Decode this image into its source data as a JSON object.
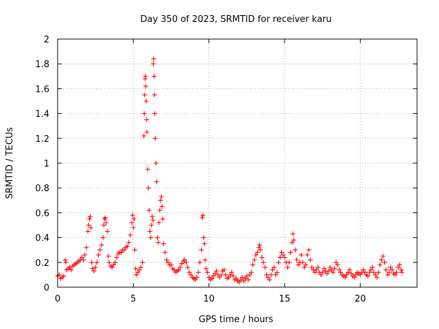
{
  "chart_data": {
    "type": "scatter",
    "title": "Day 350 of 2023, SRMTID for receiver karu",
    "xlabel": "GPS time / hours",
    "ylabel": "SRMTID / TECUs",
    "xlim": [
      0,
      23.75
    ],
    "ylim": [
      0,
      2
    ],
    "x_ticks": [
      0,
      5,
      10,
      15,
      20
    ],
    "x_tick_labels": [
      "0",
      "5",
      "10",
      "15",
      "20"
    ],
    "y_ticks": [
      0,
      0.2,
      0.4,
      0.6,
      0.8,
      1,
      1.2,
      1.4,
      1.6,
      1.8,
      2
    ],
    "y_tick_labels": [
      "0",
      "0.2",
      "0.4",
      "0.6",
      "0.8",
      "1",
      "1.2",
      "1.4",
      "1.6",
      "1.8",
      "2"
    ],
    "grid": true,
    "marker": "+",
    "color": "#ff0000",
    "series": [
      {
        "name": "SRMTID",
        "points": [
          [
            0.0,
            0.09
          ],
          [
            0.1,
            0.1
          ],
          [
            0.2,
            0.07
          ],
          [
            0.3,
            0.08
          ],
          [
            0.4,
            0.09
          ],
          [
            0.5,
            0.22
          ],
          [
            0.55,
            0.2
          ],
          [
            0.6,
            0.14
          ],
          [
            0.7,
            0.15
          ],
          [
            0.8,
            0.16
          ],
          [
            0.9,
            0.14
          ],
          [
            1.0,
            0.17
          ],
          [
            1.1,
            0.18
          ],
          [
            1.2,
            0.19
          ],
          [
            1.3,
            0.2
          ],
          [
            1.4,
            0.21
          ],
          [
            1.5,
            0.22
          ],
          [
            1.6,
            0.24
          ],
          [
            1.7,
            0.22
          ],
          [
            1.8,
            0.26
          ],
          [
            1.9,
            0.32
          ],
          [
            2.0,
            0.45
          ],
          [
            2.05,
            0.5
          ],
          [
            2.1,
            0.55
          ],
          [
            2.15,
            0.57
          ],
          [
            2.2,
            0.48
          ],
          [
            2.25,
            0.2
          ],
          [
            2.3,
            0.15
          ],
          [
            2.4,
            0.13
          ],
          [
            2.5,
            0.16
          ],
          [
            2.6,
            0.2
          ],
          [
            2.7,
            0.26
          ],
          [
            2.8,
            0.3
          ],
          [
            2.9,
            0.34
          ],
          [
            3.0,
            0.4
          ],
          [
            3.05,
            0.5
          ],
          [
            3.1,
            0.55
          ],
          [
            3.15,
            0.56
          ],
          [
            3.2,
            0.52
          ],
          [
            3.3,
            0.45
          ],
          [
            3.35,
            0.25
          ],
          [
            3.4,
            0.2
          ],
          [
            3.5,
            0.17
          ],
          [
            3.6,
            0.16
          ],
          [
            3.7,
            0.18
          ],
          [
            3.8,
            0.2
          ],
          [
            3.9,
            0.24
          ],
          [
            4.0,
            0.27
          ],
          [
            4.1,
            0.28
          ],
          [
            4.2,
            0.28
          ],
          [
            4.3,
            0.3
          ],
          [
            4.4,
            0.3
          ],
          [
            4.5,
            0.32
          ],
          [
            4.6,
            0.33
          ],
          [
            4.7,
            0.36
          ],
          [
            4.8,
            0.42
          ],
          [
            4.9,
            0.52
          ],
          [
            4.95,
            0.58
          ],
          [
            5.0,
            0.48
          ],
          [
            5.05,
            0.55
          ],
          [
            5.1,
            0.3
          ],
          [
            5.15,
            0.15
          ],
          [
            5.2,
            0.1
          ],
          [
            5.3,
            0.12
          ],
          [
            5.4,
            0.14
          ],
          [
            5.5,
            0.16
          ],
          [
            5.6,
            0.2
          ],
          [
            5.7,
            1.22
          ],
          [
            5.72,
            1.4
          ],
          [
            5.75,
            1.55
          ],
          [
            5.78,
            1.68
          ],
          [
            5.8,
            1.7
          ],
          [
            5.82,
            1.62
          ],
          [
            5.85,
            1.5
          ],
          [
            5.88,
            1.35
          ],
          [
            5.9,
            1.25
          ],
          [
            5.95,
            0.95
          ],
          [
            6.0,
            0.8
          ],
          [
            6.05,
            0.62
          ],
          [
            6.1,
            0.45
          ],
          [
            6.15,
            0.4
          ],
          [
            6.2,
            0.5
          ],
          [
            6.25,
            0.57
          ],
          [
            6.3,
            0.54
          ],
          [
            6.32,
            1.8
          ],
          [
            6.35,
            1.84
          ],
          [
            6.38,
            1.7
          ],
          [
            6.4,
            1.55
          ],
          [
            6.42,
            1.4
          ],
          [
            6.45,
            1.2
          ],
          [
            6.5,
            1.0
          ],
          [
            6.55,
            0.85
          ],
          [
            6.6,
            0.4
          ],
          [
            6.65,
            0.36
          ],
          [
            6.7,
            0.52
          ],
          [
            6.75,
            0.62
          ],
          [
            6.8,
            0.7
          ],
          [
            6.85,
            0.73
          ],
          [
            6.9,
            0.65
          ],
          [
            6.95,
            0.55
          ],
          [
            7.0,
            0.35
          ],
          [
            7.1,
            0.28
          ],
          [
            7.2,
            0.22
          ],
          [
            7.3,
            0.2
          ],
          [
            7.4,
            0.18
          ],
          [
            7.5,
            0.18
          ],
          [
            7.6,
            0.15
          ],
          [
            7.7,
            0.14
          ],
          [
            7.8,
            0.12
          ],
          [
            7.9,
            0.13
          ],
          [
            8.0,
            0.14
          ],
          [
            8.1,
            0.16
          ],
          [
            8.2,
            0.19
          ],
          [
            8.3,
            0.21
          ],
          [
            8.4,
            0.22
          ],
          [
            8.5,
            0.2
          ],
          [
            8.6,
            0.16
          ],
          [
            8.7,
            0.12
          ],
          [
            8.8,
            0.1
          ],
          [
            8.9,
            0.08
          ],
          [
            9.0,
            0.07
          ],
          [
            9.1,
            0.06
          ],
          [
            9.2,
            0.08
          ],
          [
            9.3,
            0.12
          ],
          [
            9.4,
            0.2
          ],
          [
            9.5,
            0.3
          ],
          [
            9.55,
            0.56
          ],
          [
            9.6,
            0.58
          ],
          [
            9.65,
            0.4
          ],
          [
            9.7,
            0.35
          ],
          [
            9.75,
            0.22
          ],
          [
            9.8,
            0.15
          ],
          [
            9.9,
            0.12
          ],
          [
            10.0,
            0.08
          ],
          [
            10.1,
            0.06
          ],
          [
            10.2,
            0.07
          ],
          [
            10.3,
            0.09
          ],
          [
            10.4,
            0.11
          ],
          [
            10.5,
            0.13
          ],
          [
            10.6,
            0.1
          ],
          [
            10.7,
            0.08
          ],
          [
            10.8,
            0.1
          ],
          [
            10.9,
            0.13
          ],
          [
            11.0,
            0.14
          ],
          [
            11.1,
            0.1
          ],
          [
            11.2,
            0.07
          ],
          [
            11.3,
            0.08
          ],
          [
            11.4,
            0.1
          ],
          [
            11.5,
            0.12
          ],
          [
            11.6,
            0.09
          ],
          [
            11.7,
            0.06
          ],
          [
            11.8,
            0.07
          ],
          [
            11.9,
            0.05
          ],
          [
            12.0,
            0.04
          ],
          [
            12.1,
            0.06
          ],
          [
            12.2,
            0.08
          ],
          [
            12.3,
            0.05
          ],
          [
            12.4,
            0.07
          ],
          [
            12.5,
            0.09
          ],
          [
            12.6,
            0.06
          ],
          [
            12.7,
            0.1
          ],
          [
            12.8,
            0.12
          ],
          [
            12.9,
            0.18
          ],
          [
            13.0,
            0.22
          ],
          [
            13.1,
            0.26
          ],
          [
            13.2,
            0.28
          ],
          [
            13.3,
            0.32
          ],
          [
            13.35,
            0.34
          ],
          [
            13.4,
            0.3
          ],
          [
            13.5,
            0.24
          ],
          [
            13.6,
            0.2
          ],
          [
            13.7,
            0.16
          ],
          [
            13.8,
            0.1
          ],
          [
            13.9,
            0.08
          ],
          [
            14.0,
            0.06
          ],
          [
            14.1,
            0.1
          ],
          [
            14.2,
            0.14
          ],
          [
            14.3,
            0.16
          ],
          [
            14.4,
            0.1
          ],
          [
            14.5,
            0.12
          ],
          [
            14.6,
            0.2
          ],
          [
            14.7,
            0.24
          ],
          [
            14.8,
            0.28
          ],
          [
            14.9,
            0.26
          ],
          [
            15.0,
            0.24
          ],
          [
            15.1,
            0.2
          ],
          [
            15.2,
            0.16
          ],
          [
            15.3,
            0.2
          ],
          [
            15.4,
            0.28
          ],
          [
            15.5,
            0.36
          ],
          [
            15.55,
            0.43
          ],
          [
            15.6,
            0.38
          ],
          [
            15.7,
            0.3
          ],
          [
            15.8,
            0.22
          ],
          [
            15.9,
            0.18
          ],
          [
            16.0,
            0.2
          ],
          [
            16.1,
            0.26
          ],
          [
            16.2,
            0.2
          ],
          [
            16.3,
            0.16
          ],
          [
            16.4,
            0.18
          ],
          [
            16.5,
            0.26
          ],
          [
            16.6,
            0.3
          ],
          [
            16.7,
            0.22
          ],
          [
            16.8,
            0.16
          ],
          [
            16.9,
            0.14
          ],
          [
            17.0,
            0.12
          ],
          [
            17.1,
            0.14
          ],
          [
            17.2,
            0.16
          ],
          [
            17.3,
            0.12
          ],
          [
            17.4,
            0.1
          ],
          [
            17.5,
            0.12
          ],
          [
            17.6,
            0.15
          ],
          [
            17.7,
            0.13
          ],
          [
            17.8,
            0.11
          ],
          [
            17.9,
            0.13
          ],
          [
            18.0,
            0.16
          ],
          [
            18.1,
            0.14
          ],
          [
            18.2,
            0.12
          ],
          [
            18.3,
            0.15
          ],
          [
            18.4,
            0.2
          ],
          [
            18.5,
            0.18
          ],
          [
            18.6,
            0.14
          ],
          [
            18.7,
            0.12
          ],
          [
            18.8,
            0.1
          ],
          [
            18.9,
            0.09
          ],
          [
            19.0,
            0.08
          ],
          [
            19.1,
            0.1
          ],
          [
            19.2,
            0.12
          ],
          [
            19.3,
            0.14
          ],
          [
            19.4,
            0.11
          ],
          [
            19.5,
            0.09
          ],
          [
            19.6,
            0.08
          ],
          [
            19.7,
            0.1
          ],
          [
            19.8,
            0.12
          ],
          [
            19.9,
            0.11
          ],
          [
            20.0,
            0.1
          ],
          [
            20.1,
            0.12
          ],
          [
            20.2,
            0.14
          ],
          [
            20.3,
            0.12
          ],
          [
            20.4,
            0.1
          ],
          [
            20.5,
            0.09
          ],
          [
            20.6,
            0.12
          ],
          [
            20.7,
            0.14
          ],
          [
            20.8,
            0.16
          ],
          [
            20.9,
            0.12
          ],
          [
            21.0,
            0.1
          ],
          [
            21.1,
            0.08
          ],
          [
            21.2,
            0.12
          ],
          [
            21.3,
            0.18
          ],
          [
            21.4,
            0.22
          ],
          [
            21.5,
            0.25
          ],
          [
            21.6,
            0.2
          ],
          [
            21.7,
            0.14
          ],
          [
            21.8,
            0.1
          ],
          [
            21.9,
            0.12
          ],
          [
            22.0,
            0.16
          ],
          [
            22.1,
            0.14
          ],
          [
            22.2,
            0.11
          ],
          [
            22.3,
            0.1
          ],
          [
            22.4,
            0.12
          ],
          [
            22.5,
            0.16
          ],
          [
            22.6,
            0.18
          ],
          [
            22.7,
            0.14
          ],
          [
            22.75,
            0.12
          ]
        ]
      }
    ]
  }
}
